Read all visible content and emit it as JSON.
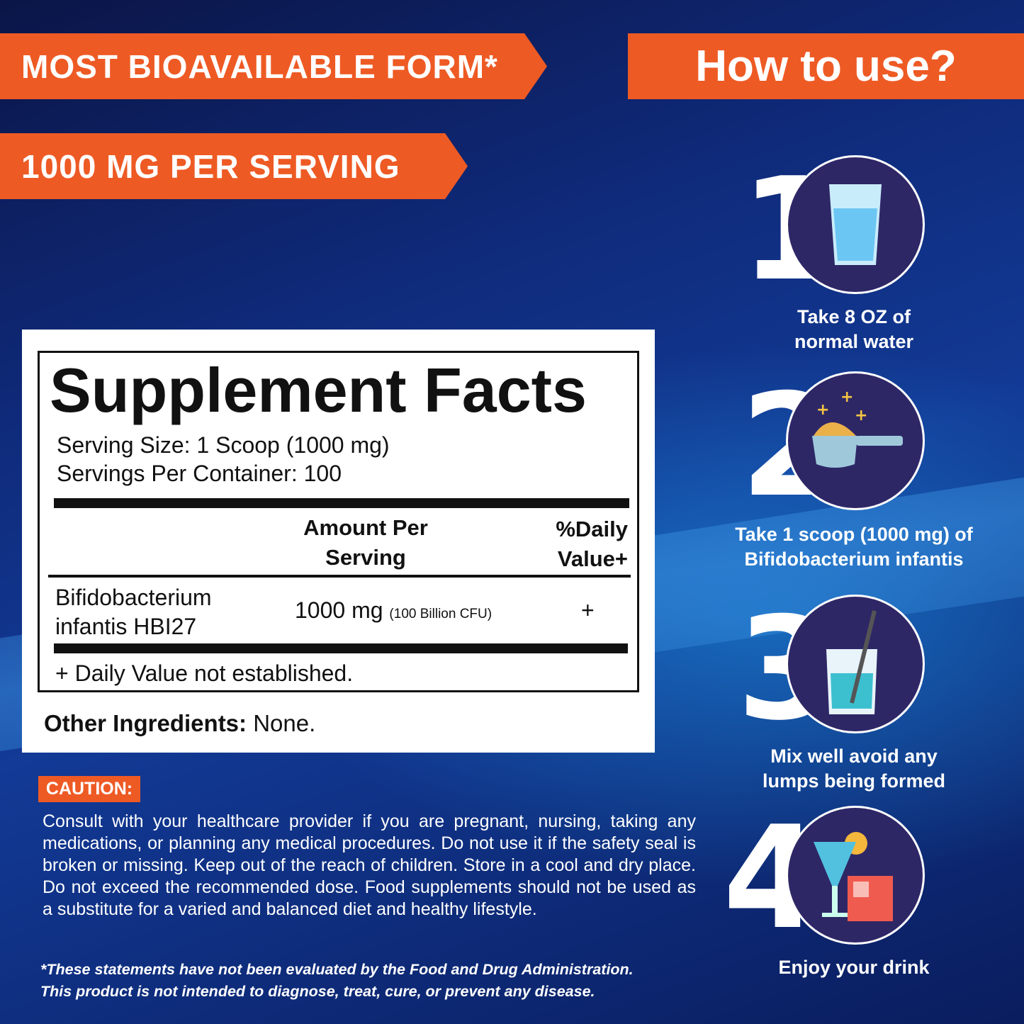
{
  "banners": {
    "bioavailable": "MOST BIOAVAILABLE FORM*",
    "dose": "1000 MG PER SERVING",
    "how_to_use": "How to use?"
  },
  "facts": {
    "title": "Supplement Facts",
    "serving_size": "Serving Size: 1 Scoop (1000 mg)",
    "servings_per_container": "Servings Per Container: 100",
    "header_amount": "Amount Per Serving",
    "header_dv": "%Daily Value+",
    "rows": [
      {
        "name": "Bifidobacterium infantis HBI27",
        "amount": "1000 mg",
        "amount_note": "(100 Billion CFU)",
        "dv": "+"
      }
    ],
    "footnote": "+ Daily Value not established.",
    "other_label": "Other Ingredients:",
    "other_value": " None."
  },
  "caution": {
    "label": "CAUTION:",
    "text": "Consult with your healthcare provider if you are pregnant, nursing, taking any medications, or planning any medical procedures. Do not use it if the safety seal is broken or missing. Keep out of the reach of children. Store in a cool and dry place. Do not exceed the recommended dose. Food supplements should not be used as a substitute for a varied and balanced diet and healthy lifestyle.",
    "disclaimer_1": "*These statements have not been evaluated by the Food and Drug Administration.",
    "disclaimer_2": "This product is not intended to diagnose, treat, cure, or prevent any disease."
  },
  "steps": [
    {
      "num": "1",
      "icon": "water-glass-icon",
      "line1": "Take  8 OZ  of",
      "line2": "normal water"
    },
    {
      "num": "2",
      "icon": "powder-scoop-icon",
      "line1": "Take 1 scoop (1000 mg) of",
      "line2": "Bifidobacterium infantis"
    },
    {
      "num": "3",
      "icon": "mixing-cup-icon",
      "line1": "Mix well avoid any",
      "line2": "lumps being formed"
    },
    {
      "num": "4",
      "icon": "drinks-icon",
      "line1": "Enjoy your drink",
      "line2": ""
    }
  ],
  "colors": {
    "accent": "#ee5a24",
    "navy": "#0f2a7a",
    "circle": "#2e2766"
  }
}
